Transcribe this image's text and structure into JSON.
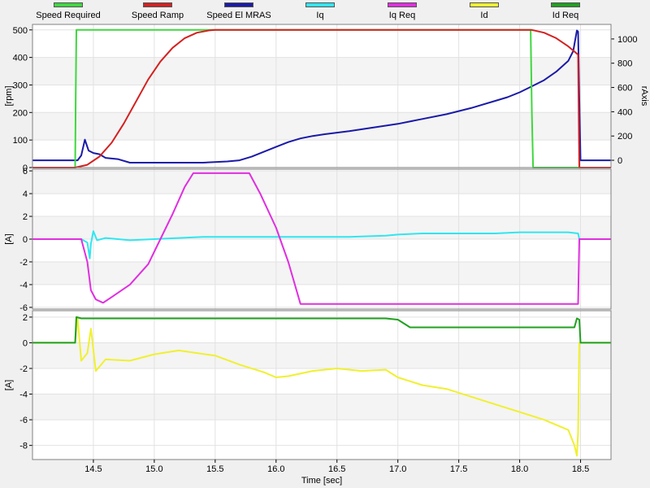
{
  "legend": [
    {
      "label": "Speed Required",
      "color": "#3ed83e"
    },
    {
      "label": "Speed Ramp",
      "color": "#d42020"
    },
    {
      "label": "Speed El MRAS",
      "color": "#1a1aa8"
    },
    {
      "label": "Iq",
      "color": "#30e6f0"
    },
    {
      "label": "Iq Req",
      "color": "#e02ee0"
    },
    {
      "label": "Id",
      "color": "#f0f030"
    },
    {
      "label": "Id Req",
      "color": "#20a020"
    }
  ],
  "chart_data": [
    {
      "type": "line",
      "ylabel": "[rpm]",
      "ylabel_right": "rAxis",
      "ylim": [
        0,
        520
      ],
      "yticks": [
        0,
        100,
        200,
        300,
        400,
        500
      ],
      "ylim_right": [
        -60,
        1120
      ],
      "yticks_right": [
        0,
        200,
        400,
        600,
        800,
        1000
      ],
      "grid": true,
      "series": [
        {
          "name": "Speed Required",
          "color": "#3ed83e",
          "points": [
            [
              14.0,
              0
            ],
            [
              14.35,
              0
            ],
            [
              14.355,
              260
            ],
            [
              14.36,
              500
            ],
            [
              18.09,
              500
            ],
            [
              18.1,
              200
            ],
            [
              18.11,
              0
            ],
            [
              18.75,
              0
            ]
          ]
        },
        {
          "name": "Speed Ramp",
          "color": "#d42020",
          "points": [
            [
              14.0,
              0
            ],
            [
              14.35,
              0
            ],
            [
              14.45,
              10
            ],
            [
              14.55,
              40
            ],
            [
              14.65,
              90
            ],
            [
              14.75,
              160
            ],
            [
              14.85,
              240
            ],
            [
              14.95,
              320
            ],
            [
              15.05,
              385
            ],
            [
              15.15,
              435
            ],
            [
              15.25,
              470
            ],
            [
              15.35,
              490
            ],
            [
              15.45,
              498
            ],
            [
              15.5,
              500
            ],
            [
              18.1,
              500
            ],
            [
              18.2,
              490
            ],
            [
              18.3,
              470
            ],
            [
              18.4,
              440
            ],
            [
              18.48,
              410
            ],
            [
              18.49,
              0
            ],
            [
              18.75,
              0
            ]
          ]
        }
      ],
      "series_right": [
        {
          "name": "Speed El MRAS",
          "color": "#1a1aa8",
          "points": [
            [
              14.0,
              0
            ],
            [
              14.37,
              0
            ],
            [
              14.4,
              40
            ],
            [
              14.43,
              170
            ],
            [
              14.46,
              80
            ],
            [
              14.5,
              60
            ],
            [
              14.55,
              50
            ],
            [
              14.6,
              20
            ],
            [
              14.7,
              10
            ],
            [
              14.8,
              -20
            ],
            [
              15.0,
              -20
            ],
            [
              15.4,
              -20
            ],
            [
              15.6,
              -10
            ],
            [
              15.7,
              0
            ],
            [
              15.8,
              30
            ],
            [
              15.9,
              70
            ],
            [
              16.0,
              110
            ],
            [
              16.1,
              150
            ],
            [
              16.2,
              180
            ],
            [
              16.3,
              200
            ],
            [
              16.4,
              215
            ],
            [
              16.6,
              240
            ],
            [
              16.8,
              270
            ],
            [
              17.0,
              300
            ],
            [
              17.2,
              340
            ],
            [
              17.4,
              380
            ],
            [
              17.6,
              430
            ],
            [
              17.8,
              490
            ],
            [
              17.9,
              520
            ],
            [
              18.0,
              560
            ],
            [
              18.1,
              610
            ],
            [
              18.2,
              660
            ],
            [
              18.3,
              730
            ],
            [
              18.4,
              820
            ],
            [
              18.44,
              900
            ],
            [
              18.47,
              1070
            ],
            [
              18.48,
              1060
            ],
            [
              18.49,
              500
            ],
            [
              18.5,
              0
            ],
            [
              18.75,
              0
            ]
          ]
        }
      ]
    },
    {
      "type": "line",
      "ylabel": "[A]",
      "ylim": [
        -6.15,
        6.15
      ],
      "yticks": [
        -6,
        -4,
        -2,
        0,
        2,
        4,
        6
      ],
      "grid": true,
      "series": [
        {
          "name": "Iq",
          "color": "#30e6f0",
          "points": [
            [
              14.0,
              0
            ],
            [
              14.4,
              0
            ],
            [
              14.45,
              -0.3
            ],
            [
              14.47,
              -1.7
            ],
            [
              14.48,
              -0.4
            ],
            [
              14.5,
              0.7
            ],
            [
              14.53,
              -0.1
            ],
            [
              14.6,
              0.1
            ],
            [
              14.8,
              -0.1
            ],
            [
              15.0,
              0
            ],
            [
              15.2,
              0.1
            ],
            [
              15.4,
              0.2
            ],
            [
              15.8,
              0.2
            ],
            [
              16.2,
              0.2
            ],
            [
              16.6,
              0.2
            ],
            [
              16.9,
              0.3
            ],
            [
              17.0,
              0.4
            ],
            [
              17.2,
              0.5
            ],
            [
              17.4,
              0.5
            ],
            [
              17.6,
              0.5
            ],
            [
              17.8,
              0.5
            ],
            [
              18.0,
              0.6
            ],
            [
              18.2,
              0.6
            ],
            [
              18.4,
              0.6
            ],
            [
              18.48,
              0.5
            ],
            [
              18.49,
              0
            ],
            [
              18.75,
              0
            ]
          ]
        },
        {
          "name": "Iq Req",
          "color": "#e02ee0",
          "points": [
            [
              14.0,
              0
            ],
            [
              14.4,
              0
            ],
            [
              14.45,
              -2.0
            ],
            [
              14.48,
              -4.5
            ],
            [
              14.52,
              -5.3
            ],
            [
              14.58,
              -5.6
            ],
            [
              14.65,
              -5.1
            ],
            [
              14.8,
              -4.0
            ],
            [
              14.95,
              -2.2
            ],
            [
              15.05,
              0
            ],
            [
              15.15,
              2.2
            ],
            [
              15.25,
              4.6
            ],
            [
              15.32,
              5.8
            ],
            [
              15.78,
              5.8
            ],
            [
              15.87,
              4.0
            ],
            [
              16.0,
              1.0
            ],
            [
              16.1,
              -2.0
            ],
            [
              16.2,
              -5.7
            ],
            [
              18.48,
              -5.7
            ],
            [
              18.49,
              0
            ],
            [
              18.75,
              0
            ]
          ]
        }
      ]
    },
    {
      "type": "line",
      "ylabel": "[A]",
      "xlabel": "Time [sec]",
      "ylim": [
        -9.1,
        2.5
      ],
      "yticks": [
        -8,
        -6,
        -4,
        -2,
        0,
        2
      ],
      "xlim": [
        14.0,
        18.75
      ],
      "xticks": [
        14.5,
        15.0,
        15.5,
        16.0,
        16.5,
        17.0,
        17.5,
        18.0,
        18.5
      ],
      "grid": true,
      "series": [
        {
          "name": "Id",
          "color": "#f0f030",
          "points": [
            [
              14.0,
              0
            ],
            [
              14.35,
              0
            ],
            [
              14.37,
              2.0
            ],
            [
              14.4,
              -1.4
            ],
            [
              14.45,
              -0.8
            ],
            [
              14.48,
              1.1
            ],
            [
              14.52,
              -2.2
            ],
            [
              14.6,
              -1.3
            ],
            [
              14.8,
              -1.4
            ],
            [
              15.0,
              -0.9
            ],
            [
              15.2,
              -0.6
            ],
            [
              15.35,
              -0.8
            ],
            [
              15.5,
              -1.0
            ],
            [
              15.7,
              -1.7
            ],
            [
              15.9,
              -2.3
            ],
            [
              16.0,
              -2.7
            ],
            [
              16.1,
              -2.6
            ],
            [
              16.3,
              -2.2
            ],
            [
              16.5,
              -2.0
            ],
            [
              16.7,
              -2.2
            ],
            [
              16.9,
              -2.1
            ],
            [
              17.0,
              -2.7
            ],
            [
              17.2,
              -3.3
            ],
            [
              17.4,
              -3.6
            ],
            [
              17.6,
              -4.2
            ],
            [
              17.8,
              -4.8
            ],
            [
              18.0,
              -5.4
            ],
            [
              18.2,
              -6.0
            ],
            [
              18.4,
              -6.8
            ],
            [
              18.45,
              -8.0
            ],
            [
              18.47,
              -8.8
            ],
            [
              18.48,
              -7.0
            ],
            [
              18.49,
              0
            ],
            [
              18.75,
              0
            ]
          ]
        },
        {
          "name": "Id Req",
          "color": "#20a020",
          "points": [
            [
              14.0,
              0
            ],
            [
              14.35,
              0
            ],
            [
              14.36,
              2.0
            ],
            [
              14.4,
              1.9
            ],
            [
              14.5,
              1.9
            ],
            [
              16.9,
              1.9
            ],
            [
              17.0,
              1.8
            ],
            [
              17.1,
              1.2
            ],
            [
              18.45,
              1.2
            ],
            [
              18.47,
              1.9
            ],
            [
              18.49,
              1.8
            ],
            [
              18.5,
              0
            ],
            [
              18.75,
              0
            ]
          ]
        }
      ]
    }
  ]
}
